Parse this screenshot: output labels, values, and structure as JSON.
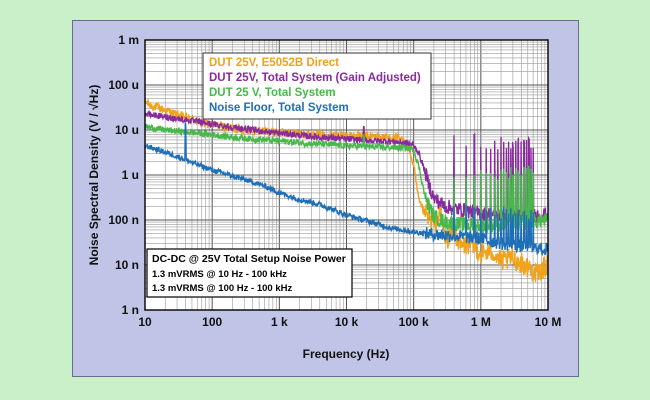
{
  "chart_data": {
    "type": "line",
    "ylabel": "Noise Spectral Density (V / √Hz)",
    "xlabel": "Frequency (Hz)",
    "x_scale": "log",
    "y_scale": "log",
    "xlim": [
      10,
      10000000
    ],
    "ylim": [
      1e-09,
      0.001
    ],
    "grid": true,
    "legend_placement": "top-center",
    "x_ticks": [
      {
        "value": 10,
        "label": "10"
      },
      {
        "value": 100,
        "label": "100"
      },
      {
        "value": 1000,
        "label": "1 k"
      },
      {
        "value": 10000,
        "label": "10 k"
      },
      {
        "value": 100000,
        "label": "100 k"
      },
      {
        "value": 1000000,
        "label": "1 M"
      },
      {
        "value": 10000000,
        "label": "10 M"
      }
    ],
    "y_ticks": [
      {
        "value": 1e-09,
        "label": "1 n"
      },
      {
        "value": 1e-08,
        "label": "10 n"
      },
      {
        "value": 1e-07,
        "label": "100 n"
      },
      {
        "value": 1e-06,
        "label": "1 u"
      },
      {
        "value": 1e-05,
        "label": "10 u"
      },
      {
        "value": 0.0001,
        "label": "100 u"
      },
      {
        "value": 0.001,
        "label": "1 m"
      }
    ],
    "series": [
      {
        "name": "DUT 25V, E5052B Direct",
        "color": "#f0a21a",
        "points": [
          [
            10,
            4.2e-05
          ],
          [
            13,
            3.4e-05
          ],
          [
            18,
            2.9e-05
          ],
          [
            25,
            2.4e-05
          ],
          [
            40,
            1.9e-05
          ],
          [
            70,
            1.45e-05
          ],
          [
            100,
            1.3e-05
          ],
          [
            200,
            1.1e-05
          ],
          [
            500,
            9.5e-06
          ],
          [
            1000,
            8.8e-06
          ],
          [
            3000,
            8e-06
          ],
          [
            10000,
            7.5e-06
          ],
          [
            20000,
            7.2e-06
          ],
          [
            40000,
            6.9e-06
          ],
          [
            60000,
            6.5e-06
          ],
          [
            80000,
            5e-06
          ],
          [
            100000,
            1.6e-06
          ],
          [
            120000,
            2.5e-07
          ],
          [
            150000,
            1.3e-07
          ],
          [
            200000,
            8e-08
          ],
          [
            250000,
            1.4e-07
          ],
          [
            300000,
            3.5e-08
          ],
          [
            400000,
            6e-08
          ],
          [
            500000,
            2.5e-08
          ],
          [
            700000,
            3e-08
          ],
          [
            1000000,
            1.8e-08
          ],
          [
            1500000,
            2e-08
          ],
          [
            2000000,
            1.2e-08
          ],
          [
            3000000,
            1.4e-08
          ],
          [
            5000000,
            9e-09
          ],
          [
            7000000,
            6e-09
          ],
          [
            10000000,
            1.1e-08
          ]
        ]
      },
      {
        "name": "DUT 25V, Total System (Gain Adjusted)",
        "color": "#8a2aa0",
        "points": [
          [
            10,
            2.3e-05
          ],
          [
            20,
            1.95e-05
          ],
          [
            50,
            1.6e-05
          ],
          [
            100,
            1.35e-05
          ],
          [
            300,
            1.05e-05
          ],
          [
            1000,
            8.5e-06
          ],
          [
            3000,
            7.2e-06
          ],
          [
            10000,
            6.3e-06
          ],
          [
            20000,
            5.9e-06
          ],
          [
            50000,
            5.5e-06
          ],
          [
            80000,
            5.1e-06
          ],
          [
            100000,
            4.5e-06
          ],
          [
            120000,
            3e-06
          ],
          [
            140000,
            1.5e-06
          ],
          [
            170000,
            6e-07
          ],
          [
            200000,
            3e-07
          ],
          [
            300000,
            2e-07
          ],
          [
            500000,
            1.7e-07
          ],
          [
            1000000,
            1.4e-07
          ],
          [
            2000000,
            1.3e-07
          ],
          [
            5000000,
            1.2e-07
          ],
          [
            7000000,
            1.3e-07
          ],
          [
            10000000,
            1.3e-07
          ]
        ]
      },
      {
        "name": "DUT 25 V, Total System",
        "color": "#48b84a",
        "points": [
          [
            10,
            1.2e-05
          ],
          [
            20,
            1e-05
          ],
          [
            50,
            8.8e-06
          ],
          [
            100,
            7.8e-06
          ],
          [
            300,
            6.5e-06
          ],
          [
            1000,
            5.7e-06
          ],
          [
            3000,
            5e-06
          ],
          [
            10000,
            4.5e-06
          ],
          [
            30000,
            4.2e-06
          ],
          [
            80000,
            4e-06
          ],
          [
            100000,
            3.7e-06
          ],
          [
            120000,
            1.5e-06
          ],
          [
            150000,
            3e-07
          ],
          [
            200000,
            1.2e-07
          ],
          [
            300000,
            9e-08
          ],
          [
            500000,
            8e-08
          ],
          [
            1000000,
            7.5e-08
          ],
          [
            2000000,
            8e-08
          ],
          [
            5000000,
            9e-08
          ],
          [
            10000000,
            1e-07
          ]
        ]
      },
      {
        "name": "Noise Floor, Total System",
        "color": "#1e6fb8",
        "points": [
          [
            10,
            4.5e-06
          ],
          [
            15,
            3.7e-06
          ],
          [
            20,
            3.2e-06
          ],
          [
            30,
            2.6e-06
          ],
          [
            50,
            1.9e-06
          ],
          [
            80,
            1.45e-06
          ],
          [
            100,
            1.3e-06
          ],
          [
            200,
            9.5e-07
          ],
          [
            400,
            7e-07
          ],
          [
            700,
            5.2e-07
          ],
          [
            1000,
            4e-07
          ],
          [
            2000,
            2.9e-07
          ],
          [
            4000,
            2.2e-07
          ],
          [
            7000,
            1.6e-07
          ],
          [
            10000,
            1.3e-07
          ],
          [
            20000,
            9.5e-08
          ],
          [
            50000,
            6.5e-08
          ],
          [
            100000,
            5.5e-08
          ],
          [
            150000,
            5e-08
          ],
          [
            200000,
            4.8e-08
          ],
          [
            300000,
            4.6e-08
          ],
          [
            500000,
            4.3e-08
          ],
          [
            1000000,
            3.8e-08
          ],
          [
            2000000,
            3e-08
          ],
          [
            5000000,
            2.5e-08
          ],
          [
            10000000,
            2.2e-08
          ]
        ]
      }
    ],
    "annotation": {
      "title": "DC-DC @ 25V Total Setup Noise Power",
      "lines": [
        "1.3 mVRMS @ 10 Hz - 100 kHz",
        "1.3 mVRMS @ 100 Hz - 100 kHz"
      ]
    }
  }
}
